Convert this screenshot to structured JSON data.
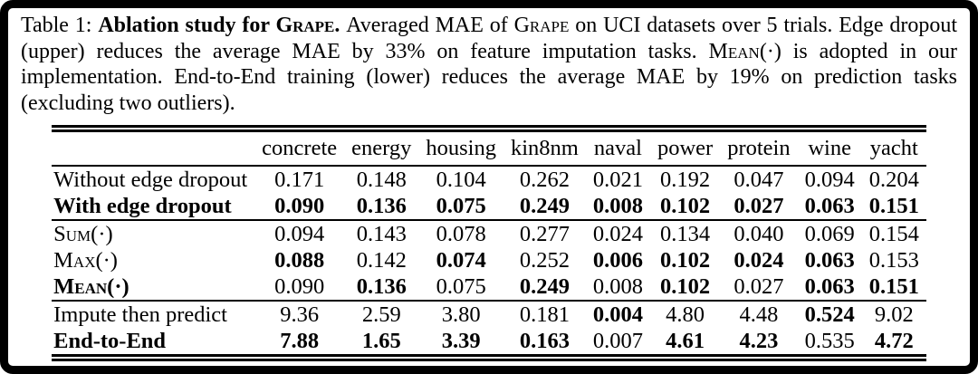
{
  "colors": {
    "text": "#000000",
    "background": "#ffffff",
    "frame": "#000000"
  },
  "caption": {
    "segments": [
      {
        "text": "Table 1: "
      },
      {
        "text": "Ablation study for "
      },
      {
        "text": "Grape"
      },
      {
        "text": ". "
      },
      {
        "text": "Averaged MAE of "
      },
      {
        "text": "Grape"
      },
      {
        "text": " on UCI datasets over 5 trials. Edge dropout (upper) reduces the average MAE by 33% on feature imputation tasks. "
      },
      {
        "text": "Mean"
      },
      {
        "text": "(·) is adopted in our implementation. End-to-End training (lower) reduces the average MAE by 19% on prediction tasks (excluding two outliers)."
      }
    ]
  },
  "table": {
    "columns": [
      "concrete",
      "energy",
      "housing",
      "kin8nm",
      "naval",
      "power",
      "protein",
      "wine",
      "yacht"
    ],
    "sections": [
      {
        "rows": [
          {
            "label": "Without edge dropout",
            "bold_label": false,
            "smallcaps": false,
            "values": [
              "0.171",
              "0.148",
              "0.104",
              "0.262",
              "0.021",
              "0.192",
              "0.047",
              "0.094",
              "0.204"
            ],
            "bold_values": [
              false,
              false,
              false,
              false,
              false,
              false,
              false,
              false,
              false
            ]
          },
          {
            "label": "With edge dropout",
            "bold_label": true,
            "smallcaps": false,
            "values": [
              "0.090",
              "0.136",
              "0.075",
              "0.249",
              "0.008",
              "0.102",
              "0.027",
              "0.063",
              "0.151"
            ],
            "bold_values": [
              true,
              true,
              true,
              true,
              true,
              true,
              true,
              true,
              true
            ]
          }
        ]
      },
      {
        "rows": [
          {
            "label": "Sum(·)",
            "bold_label": false,
            "smallcaps": true,
            "values": [
              "0.094",
              "0.143",
              "0.078",
              "0.277",
              "0.024",
              "0.134",
              "0.040",
              "0.069",
              "0.154"
            ],
            "bold_values": [
              false,
              false,
              false,
              false,
              false,
              false,
              false,
              false,
              false
            ]
          },
          {
            "label": "Max(·)",
            "bold_label": false,
            "smallcaps": true,
            "values": [
              "0.088",
              "0.142",
              "0.074",
              "0.252",
              "0.006",
              "0.102",
              "0.024",
              "0.063",
              "0.153"
            ],
            "bold_values": [
              true,
              false,
              true,
              false,
              true,
              true,
              true,
              true,
              false
            ]
          },
          {
            "label": "Mean(·)",
            "bold_label": true,
            "smallcaps": true,
            "values": [
              "0.090",
              "0.136",
              "0.075",
              "0.249",
              "0.008",
              "0.102",
              "0.027",
              "0.063",
              "0.151"
            ],
            "bold_values": [
              false,
              true,
              false,
              true,
              false,
              true,
              false,
              true,
              true
            ]
          }
        ]
      },
      {
        "rows": [
          {
            "label": "Impute then predict",
            "bold_label": false,
            "smallcaps": false,
            "values": [
              "9.36",
              "2.59",
              "3.80",
              "0.181",
              "0.004",
              "4.80",
              "4.48",
              "0.524",
              "9.02"
            ],
            "bold_values": [
              false,
              false,
              false,
              false,
              true,
              false,
              false,
              true,
              false
            ]
          },
          {
            "label": "End-to-End",
            "bold_label": true,
            "smallcaps": false,
            "values": [
              "7.88",
              "1.65",
              "3.39",
              "0.163",
              "0.007",
              "4.61",
              "4.23",
              "0.535",
              "4.72"
            ],
            "bold_values": [
              true,
              true,
              true,
              true,
              false,
              true,
              true,
              false,
              true
            ]
          }
        ]
      }
    ]
  }
}
